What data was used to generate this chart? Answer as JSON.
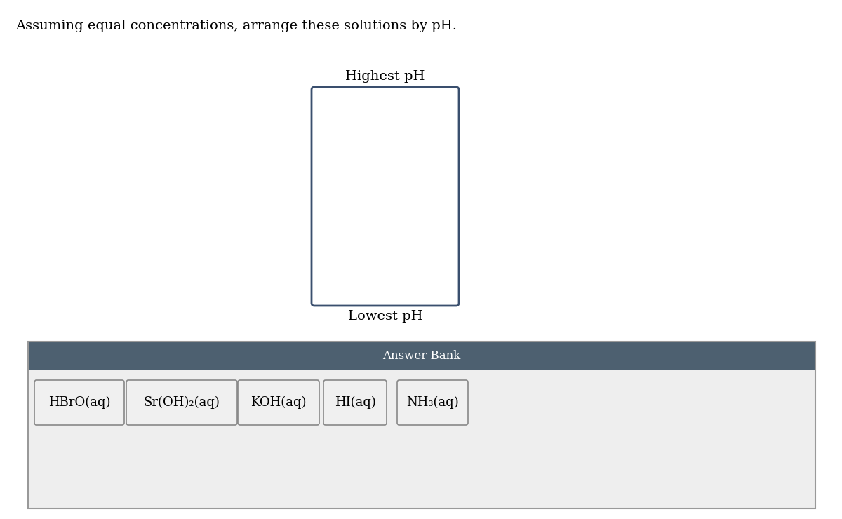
{
  "title": "Assuming equal concentrations, arrange these solutions by pH.",
  "title_fontsize": 14,
  "highest_ph_label": "Highest pH",
  "lowest_ph_label": "Lowest pH",
  "answer_bank_label": "Answer Bank",
  "answer_bank_header_color": "#4d6070",
  "answer_bank_body_color": "#eeeeee",
  "answer_bank_border_color": "#999999",
  "box_border_color": "#3a4f6e",
  "items": [
    "HBrO(aq)",
    "Sr(OH)₂(aq)",
    "KOH(aq)",
    "HI(aq)",
    "NH₃(aq)"
  ],
  "item_fontsize": 13,
  "label_fontsize": 14,
  "background_color": "#ffffff",
  "fig_width": 12.0,
  "fig_height": 7.4,
  "dpi": 100
}
